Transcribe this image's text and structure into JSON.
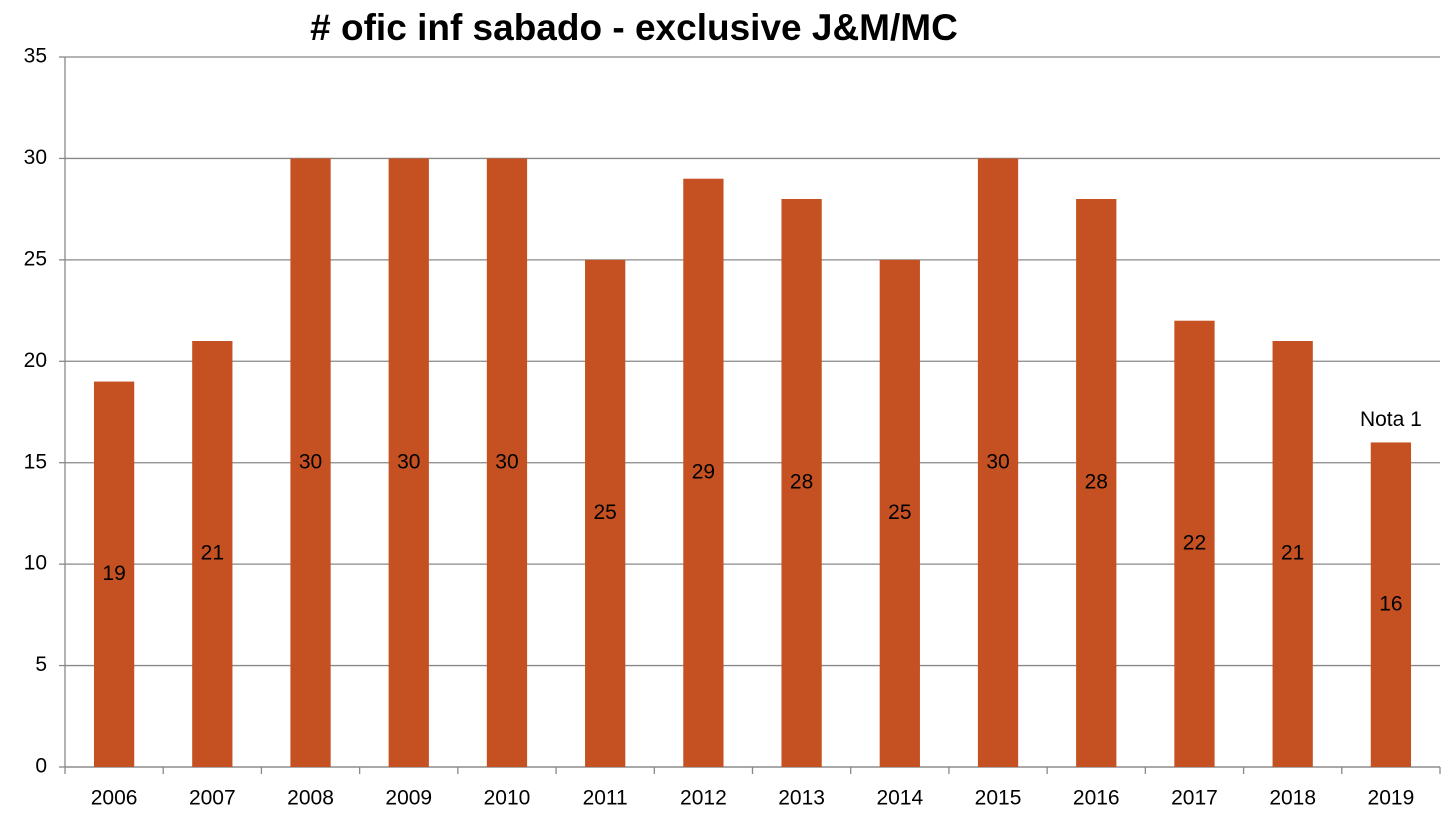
{
  "chart_data": {
    "type": "bar",
    "title": "# ofic inf sabado - exclusive J&M/MC",
    "categories": [
      "2006",
      "2007",
      "2008",
      "2009",
      "2010",
      "2011",
      "2012",
      "2013",
      "2014",
      "2015",
      "2016",
      "2017",
      "2018",
      "2019"
    ],
    "values": [
      19,
      21,
      30,
      30,
      30,
      25,
      29,
      28,
      25,
      30,
      28,
      22,
      21,
      16
    ],
    "color": "#c55122",
    "ylim": [
      0,
      35
    ],
    "yticks": [
      0,
      5,
      10,
      15,
      20,
      25,
      30,
      35
    ],
    "grid": true,
    "annotations": [
      {
        "text": "Nota 1",
        "category": "2019"
      }
    ]
  }
}
